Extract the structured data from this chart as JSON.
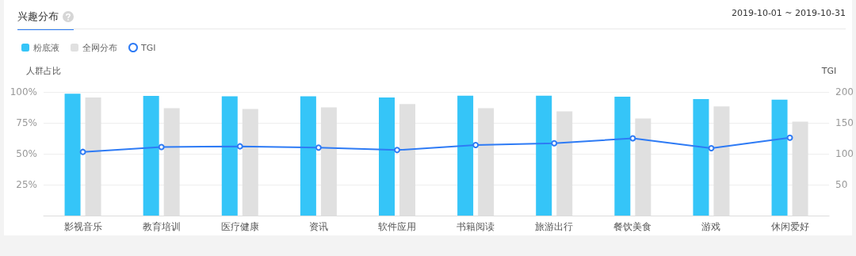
{
  "chart_data": {
    "type": "bar",
    "title": "兴趣分布",
    "annotations": [
      "2019-10-01 ~ 2019-10-31"
    ],
    "ylabel": "人群占比",
    "y2label": "TGI",
    "categories": [
      "影视音乐",
      "教育培训",
      "医疗健康",
      "资讯",
      "软件应用",
      "书籍阅读",
      "旅游出行",
      "餐饮美食",
      "游戏",
      "休闲爱好"
    ],
    "series": [
      {
        "name": "粉底液",
        "color": "#35c5f8",
        "values": [
          98.5,
          96.8,
          96.4,
          96.4,
          95.5,
          97.0,
          97.0,
          96.1,
          94.3,
          93.8
        ]
      },
      {
        "name": "全网分布",
        "color": "#e0e0e0",
        "values": [
          95.5,
          86.8,
          86.2,
          87.5,
          90.3,
          86.9,
          84.3,
          78.6,
          88.3,
          76.0
        ]
      },
      {
        "name": "TGI",
        "type": "line",
        "axis": "y2",
        "color": "#2e7bf5",
        "values": [
          103,
          111,
          112,
          110,
          106,
          114,
          117,
          125,
          109,
          126
        ]
      }
    ],
    "ylim": [
      0,
      100
    ],
    "yticks": [
      {
        "value": 0,
        "label": null
      },
      {
        "value": 25,
        "label": "25%"
      },
      {
        "value": 50,
        "label": "50%"
      },
      {
        "value": 75,
        "label": "75%"
      },
      {
        "value": 100,
        "label": "100%"
      }
    ],
    "y2lim": [
      0,
      200
    ],
    "y2ticks": [
      50,
      100,
      150,
      200
    ],
    "grid": "y",
    "legend": "top left",
    "marker": "circle"
  }
}
